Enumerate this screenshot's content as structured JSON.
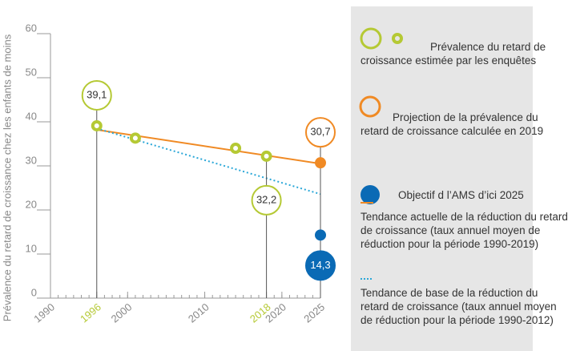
{
  "chart_data": {
    "type": "line",
    "y_label": "Prévalence du retard de croissance chez les enfants de moins",
    "xlim": [
      1990,
      2025
    ],
    "ylim": [
      0,
      60
    ],
    "xticks": [
      1990,
      1996,
      2000,
      2010,
      2018,
      2020,
      2025
    ],
    "yticks": [
      0,
      10,
      20,
      30,
      40,
      50,
      60
    ],
    "highlight_color": "#b5c934",
    "series": [
      {
        "name": "Prévalence du retard de croissance estimée par les enquêtes",
        "color": "#b5c934",
        "x": [
          1996,
          2001,
          2014,
          2018
        ],
        "values": [
          39.1,
          36.3,
          34,
          32.2
        ],
        "value_labels": [
          "39,1",
          null,
          null,
          "32,2"
        ]
      },
      {
        "name": "Projection de la prévalence du retard de croissance calculée en 2019",
        "color": "#f08a24",
        "x": [
          2025
        ],
        "values": [
          30.7
        ],
        "value_labels": [
          "30,7"
        ]
      },
      {
        "name": "Objectif d l’AMS d’ici 2025",
        "color": "#0a6ab5",
        "x": [
          2025
        ],
        "values": [
          14.3
        ],
        "value_labels": [
          "14,3"
        ]
      },
      {
        "name": "Tendance actuelle de la réduction du retard de croissance (taux annuel moyen de réduction pour la période 1990-2019)",
        "color": "#f08a24",
        "x": [
          1996,
          2025
        ],
        "values": [
          38.2,
          30.5
        ]
      },
      {
        "name": "Tendance de base de la réduction du retard de croissance (taux annuel moyen de réduction pour la période 1990-2012)",
        "color": "#2aa7d8",
        "dashed": true,
        "x": [
          1996,
          2025
        ],
        "values": [
          38.5,
          23.6
        ]
      }
    ]
  }
}
